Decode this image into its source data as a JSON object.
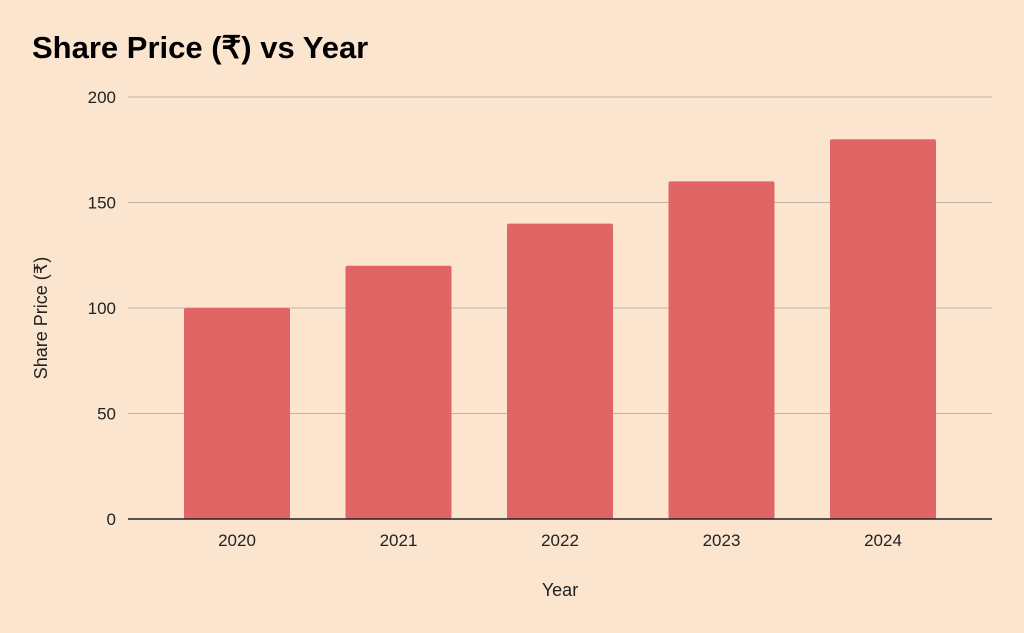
{
  "colors": {
    "background": "#FBE5CE",
    "bar": "#E06666",
    "gridline": "#BDB3A8",
    "axis": "#222222"
  },
  "chart_data": {
    "type": "bar",
    "title": "Share Price (₹) vs Year",
    "xlabel": "Year",
    "ylabel": "Share Price (₹)",
    "categories": [
      "2020",
      "2021",
      "2022",
      "2023",
      "2024"
    ],
    "values": [
      100,
      120,
      140,
      160,
      180
    ],
    "ylim": [
      0,
      200
    ],
    "yticks": [
      0,
      50,
      100,
      150,
      200
    ],
    "grid": true,
    "legend": "none"
  }
}
